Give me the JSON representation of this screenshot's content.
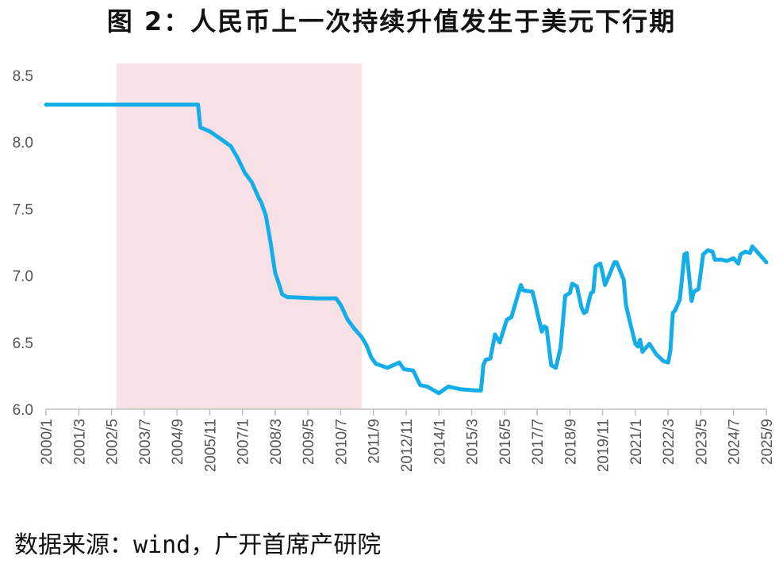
{
  "chart_data": {
    "type": "line",
    "title": "图 2：人民币上一次持续升值发生于美元下行期",
    "source": "数据来源：wind，广开首席产研院",
    "xlabel": "",
    "ylabel": "",
    "ylim": [
      6.0,
      8.5
    ],
    "yticks": [
      "6.0",
      "6.5",
      "7.0",
      "7.5",
      "8.0",
      "8.5"
    ],
    "xlim": [
      "2000-01",
      "2025-09"
    ],
    "xticks": [
      "2000/1",
      "2001/3",
      "2002/5",
      "2003/7",
      "2004/9",
      "2005/11",
      "2007/1",
      "2008/3",
      "2009/5",
      "2010/7",
      "2011/9",
      "2012/11",
      "2014/1",
      "2015/3",
      "2016/5",
      "2017/7",
      "2018/9",
      "2019/11",
      "2021/1",
      "2022/3",
      "2023/5",
      "2024/7",
      "2025/9"
    ],
    "grid": false,
    "legend": "none",
    "shaded_region": {
      "start": "2002-07",
      "end": "2011-04",
      "color": "#f8e1e4"
    },
    "line_color": "#14ade8",
    "series": [
      {
        "points": [
          [
            "2000-01",
            8.28
          ],
          [
            "2005-06",
            8.28
          ],
          [
            "2005-07",
            8.11
          ],
          [
            "2005-11",
            8.08
          ],
          [
            "2006-04",
            8.02
          ],
          [
            "2006-08",
            7.97
          ],
          [
            "2006-11",
            7.88
          ],
          [
            "2007-02",
            7.77
          ],
          [
            "2007-05",
            7.7
          ],
          [
            "2007-08",
            7.58
          ],
          [
            "2007-09",
            7.55
          ],
          [
            "2007-11",
            7.45
          ],
          [
            "2008-01",
            7.25
          ],
          [
            "2008-03",
            7.02
          ],
          [
            "2008-04",
            6.97
          ],
          [
            "2008-06",
            6.86
          ],
          [
            "2008-08",
            6.84
          ],
          [
            "2009-09",
            6.83
          ],
          [
            "2010-05",
            6.83
          ],
          [
            "2010-07",
            6.78
          ],
          [
            "2010-10",
            6.67
          ],
          [
            "2011-01",
            6.6
          ],
          [
            "2011-04",
            6.54
          ],
          [
            "2011-06",
            6.48
          ],
          [
            "2011-08",
            6.39
          ],
          [
            "2011-10",
            6.34
          ],
          [
            "2012-03",
            6.31
          ],
          [
            "2012-08",
            6.35
          ],
          [
            "2012-10",
            6.3
          ],
          [
            "2013-02",
            6.29
          ],
          [
            "2013-05",
            6.18
          ],
          [
            "2013-08",
            6.17
          ],
          [
            "2014-01",
            6.12
          ],
          [
            "2014-05",
            6.17
          ],
          [
            "2014-10",
            6.15
          ],
          [
            "2015-05",
            6.14
          ],
          [
            "2015-07",
            6.14
          ],
          [
            "2015-08",
            6.33
          ],
          [
            "2015-09",
            6.37
          ],
          [
            "2015-11",
            6.38
          ],
          [
            "2016-01",
            6.56
          ],
          [
            "2016-03",
            6.5
          ],
          [
            "2016-06",
            6.67
          ],
          [
            "2016-08",
            6.69
          ],
          [
            "2016-12",
            6.93
          ],
          [
            "2017-01",
            6.89
          ],
          [
            "2017-05",
            6.88
          ],
          [
            "2017-06",
            6.81
          ],
          [
            "2017-07",
            6.73
          ],
          [
            "2017-09",
            6.58
          ],
          [
            "2017-10",
            6.62
          ],
          [
            "2017-11",
            6.61
          ],
          [
            "2018-01",
            6.33
          ],
          [
            "2018-03",
            6.31
          ],
          [
            "2018-05",
            6.46
          ],
          [
            "2018-07",
            6.85
          ],
          [
            "2018-09",
            6.87
          ],
          [
            "2018-10",
            6.94
          ],
          [
            "2018-12",
            6.92
          ],
          [
            "2019-02",
            6.76
          ],
          [
            "2019-03",
            6.72
          ],
          [
            "2019-04",
            6.73
          ],
          [
            "2019-06",
            6.87
          ],
          [
            "2019-07",
            6.88
          ],
          [
            "2019-08",
            7.07
          ],
          [
            "2019-10",
            7.09
          ],
          [
            "2019-11",
            7.02
          ],
          [
            "2019-12",
            6.93
          ],
          [
            "2020-02",
            7.01
          ],
          [
            "2020-04",
            7.1
          ],
          [
            "2020-05",
            7.1
          ],
          [
            "2020-08",
            6.97
          ],
          [
            "2020-09",
            6.78
          ],
          [
            "2020-11",
            6.63
          ],
          [
            "2021-01",
            6.49
          ],
          [
            "2021-02",
            6.47
          ],
          [
            "2021-03",
            6.52
          ],
          [
            "2021-04",
            6.43
          ],
          [
            "2021-06",
            6.47
          ],
          [
            "2021-07",
            6.49
          ],
          [
            "2021-10",
            6.41
          ],
          [
            "2022-01",
            6.36
          ],
          [
            "2022-03",
            6.35
          ],
          [
            "2022-04",
            6.44
          ],
          [
            "2022-05",
            6.72
          ],
          [
            "2022-06",
            6.74
          ],
          [
            "2022-08",
            6.82
          ],
          [
            "2022-10",
            7.16
          ],
          [
            "2022-11",
            7.17
          ],
          [
            "2023-01",
            6.81
          ],
          [
            "2023-02",
            6.88
          ],
          [
            "2023-04",
            6.9
          ],
          [
            "2023-06",
            7.16
          ],
          [
            "2023-08",
            7.19
          ],
          [
            "2023-10",
            7.18
          ],
          [
            "2023-11",
            7.12
          ],
          [
            "2024-02",
            7.12
          ],
          [
            "2024-04",
            7.11
          ],
          [
            "2024-07",
            7.13
          ],
          [
            "2024-09",
            7.09
          ],
          [
            "2024-10",
            7.16
          ],
          [
            "2024-12",
            7.18
          ],
          [
            "2025-02",
            7.17
          ],
          [
            "2025-03",
            7.22
          ],
          [
            "2025-05",
            7.18
          ],
          [
            "2025-08",
            7.12
          ],
          [
            "2025-09",
            7.1
          ]
        ]
      }
    ]
  }
}
